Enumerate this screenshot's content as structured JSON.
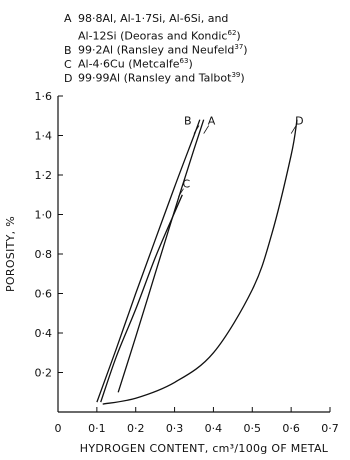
{
  "chart_data": {
    "type": "line",
    "xlabel": "HYDROGEN CONTENT, cm³/100g OF METAL",
    "ylabel": "POROSITY, %",
    "xlim": [
      0,
      0.7
    ],
    "ylim": [
      0,
      1.6
    ],
    "x_ticks": [
      0,
      0.1,
      0.2,
      0.3,
      0.4,
      0.5,
      0.6,
      0.7
    ],
    "x_tick_labels": [
      "0",
      "0·1",
      "0·2",
      "0·3",
      "0·4",
      "0·5",
      "0·6",
      "0·7"
    ],
    "y_ticks": [
      0.2,
      0.4,
      0.6,
      0.8,
      1.0,
      1.2,
      1.4,
      1.6
    ],
    "y_tick_labels": [
      "0·2",
      "0·4",
      "0·6",
      "0·8",
      "1·0",
      "1·2",
      "1·4",
      "1·6"
    ],
    "legend": [
      {
        "key": "A",
        "text": "98·8Al, Al-1·7Si, Al-6Si, and",
        "text2": "Al-12Si (Deoras and Kondic",
        "ref": "62",
        "tail": ")"
      },
      {
        "key": "B",
        "text": "99·2Al (Ransley and Neufeld",
        "ref": "37",
        "tail": ")"
      },
      {
        "key": "C",
        "text": "Al-4·6Cu (Metcalfe",
        "ref": "63",
        "tail": ")"
      },
      {
        "key": "D",
        "text": "99·99Al (Ransley and Talbot",
        "ref": "39",
        "tail": ")"
      }
    ],
    "series": [
      {
        "name": "A",
        "x": [
          0.155,
          0.2,
          0.25,
          0.3,
          0.35,
          0.375
        ],
        "y": [
          0.1,
          0.38,
          0.7,
          1.02,
          1.33,
          1.48
        ]
      },
      {
        "name": "B",
        "x": [
          0.1,
          0.15,
          0.2,
          0.25,
          0.3,
          0.35,
          0.365
        ],
        "y": [
          0.05,
          0.32,
          0.6,
          0.87,
          1.14,
          1.4,
          1.48
        ]
      },
      {
        "name": "C",
        "x": [
          0.11,
          0.15,
          0.2,
          0.25,
          0.3,
          0.32
        ],
        "y": [
          0.05,
          0.28,
          0.52,
          0.78,
          1.01,
          1.1
        ]
      },
      {
        "name": "D",
        "x": [
          0.115,
          0.2,
          0.3,
          0.4,
          0.5,
          0.55,
          0.6,
          0.615
        ],
        "y": [
          0.04,
          0.07,
          0.15,
          0.3,
          0.62,
          0.9,
          1.3,
          1.48
        ]
      }
    ],
    "curve_labels": [
      {
        "series": "A",
        "label": "A",
        "x": 0.375,
        "y": 1.41
      },
      {
        "series": "B",
        "label": "B",
        "x": 0.35,
        "y": 1.41
      },
      {
        "series": "C",
        "label": "C",
        "x": 0.31,
        "y": 1.09
      },
      {
        "series": "D",
        "label": "D",
        "x": 0.6,
        "y": 1.41
      }
    ],
    "grid": false
  }
}
